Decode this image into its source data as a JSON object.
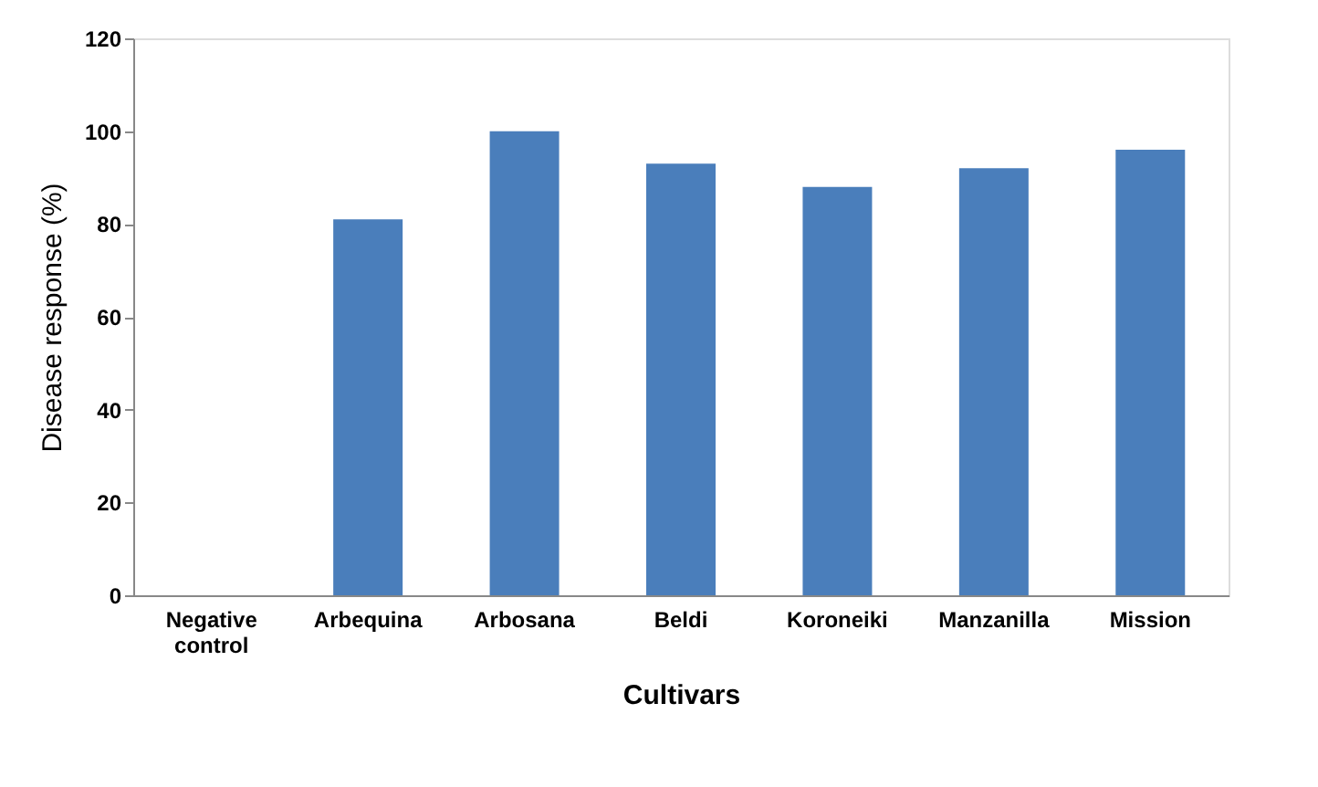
{
  "chart_data": {
    "type": "bar",
    "xlabel": "Cultivars",
    "ylabel": "Disease response (%)",
    "categories": [
      "Negative control",
      "Arbequina",
      "Arbosana",
      "Beldi",
      "Koroneiki",
      "Manzanilla",
      "Mission"
    ],
    "values": [
      0,
      81,
      100,
      93,
      88,
      92,
      96
    ],
    "color": "#4a7ebb",
    "ylim": [
      0,
      120
    ],
    "yticks": [
      0,
      20,
      40,
      60,
      80,
      100,
      120
    ],
    "grid": false
  }
}
